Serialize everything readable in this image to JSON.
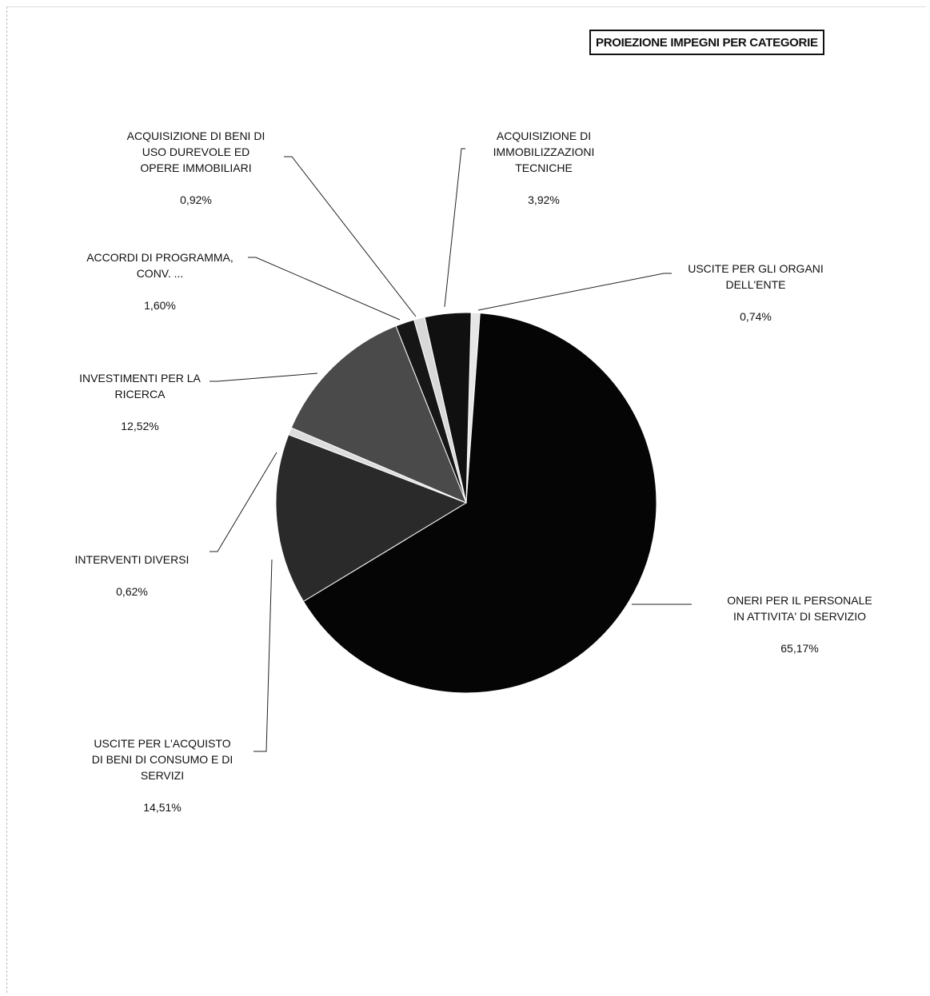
{
  "chart_data": {
    "type": "pie",
    "title": "PROIEZIONE IMPEGNI PER CATEGORIE",
    "slices": [
      {
        "label": "USCITE PER GLI ORGANI\nDELL'ENTE",
        "value": 0.74,
        "value_text": "0,74%",
        "color": "#e6e6e6"
      },
      {
        "label": "ONERI PER IL PERSONALE\nIN ATTIVITA' DI SERVIZIO",
        "value": 65.17,
        "value_text": "65,17%",
        "color": "#050505"
      },
      {
        "label": "USCITE PER L'ACQUISTO\nDI BENI DI CONSUMO E DI\nSERVIZI",
        "value": 14.51,
        "value_text": "14,51%",
        "color": "#2a2a2a"
      },
      {
        "label": "INTERVENTI DIVERSI",
        "value": 0.62,
        "value_text": "0,62%",
        "color": "#dcdcdc"
      },
      {
        "label": "INVESTIMENTI PER LA\nRICERCA",
        "value": 12.52,
        "value_text": "12,52%",
        "color": "#4a4a4a"
      },
      {
        "label": "ACCORDI DI PROGRAMMA,\nCONV. ...",
        "value": 1.6,
        "value_text": "1,60%",
        "color": "#161616"
      },
      {
        "label": "ACQUISIZIONE DI BENI DI\nUSO DUREVOLE ED\nOPERE IMMOBILIARI",
        "value": 0.92,
        "value_text": "0,92%",
        "color": "#d8d8d8"
      },
      {
        "label": "ACQUISIZIONE DI\nIMMOBILIZZAZIONI\nTECNICHE",
        "value": 3.92,
        "value_text": "3,92%",
        "color": "#101010"
      }
    ]
  }
}
